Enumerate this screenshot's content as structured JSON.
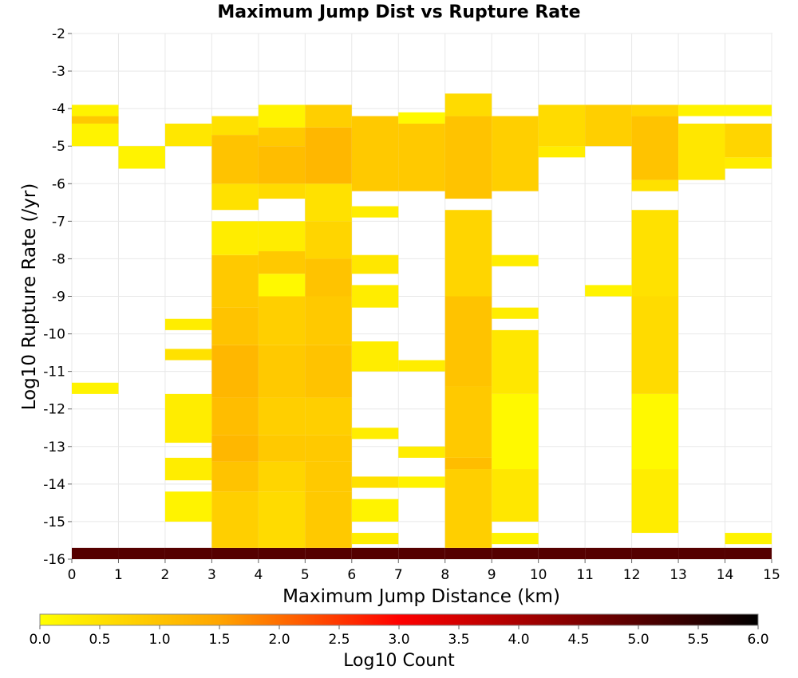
{
  "chart_data": {
    "type": "heatmap",
    "title": "Maximum Jump Dist vs Rupture Rate",
    "xlabel": "Maximum Jump Distance (km)",
    "ylabel": "Log10 Rupture Rate (/yr)",
    "xlim": [
      0,
      15
    ],
    "ylim": [
      -16,
      -2
    ],
    "x_ticks": [
      "0",
      "1",
      "2",
      "3",
      "4",
      "5",
      "6",
      "7",
      "8",
      "9",
      "10",
      "11",
      "12",
      "13",
      "14",
      "15"
    ],
    "y_ticks": [
      "-2",
      "-3",
      "-4",
      "-5",
      "-6",
      "-7",
      "-8",
      "-9",
      "-10",
      "-11",
      "-12",
      "-13",
      "-14",
      "-15",
      "-16"
    ],
    "x_bin_width": 1,
    "y_bin_height": 0.3,
    "grid": true,
    "colorbar": {
      "label": "Log10 Count",
      "range": [
        0,
        6
      ],
      "ticks": [
        "0.0",
        "0.5",
        "1.0",
        "1.5",
        "2.0",
        "2.5",
        "3.0",
        "3.5",
        "4.0",
        "4.5",
        "5.0",
        "5.5",
        "6.0"
      ],
      "palette": [
        "#ffff00",
        "#ffa500",
        "#ff0000",
        "#000000"
      ]
    },
    "columns": [
      {
        "x": 0,
        "cells": [
          {
            "y_from": -16.0,
            "y_to": -15.7,
            "v": 5.0
          },
          {
            "y_from": -11.6,
            "y_to": -11.3,
            "v": 0.2
          },
          {
            "y_from": -5.0,
            "y_to": -4.4,
            "v": 0.2
          },
          {
            "y_from": -4.4,
            "y_to": -4.2,
            "v": 0.9
          },
          {
            "y_from": -4.2,
            "y_to": -3.9,
            "v": 0.2
          }
        ]
      },
      {
        "x": 1,
        "cells": [
          {
            "y_from": -16.0,
            "y_to": -15.7,
            "v": 5.0
          },
          {
            "y_from": -5.6,
            "y_to": -5.0,
            "v": 0.2
          }
        ]
      },
      {
        "x": 2,
        "cells": [
          {
            "y_from": -16.0,
            "y_to": -15.7,
            "v": 5.0
          },
          {
            "y_from": -15.0,
            "y_to": -14.2,
            "v": 0.2
          },
          {
            "y_from": -13.9,
            "y_to": -13.3,
            "v": 0.3
          },
          {
            "y_from": -12.9,
            "y_to": -11.6,
            "v": 0.3
          },
          {
            "y_from": -10.7,
            "y_to": -10.4,
            "v": 0.5
          },
          {
            "y_from": -9.9,
            "y_to": -9.6,
            "v": 0.3
          },
          {
            "y_from": -5.0,
            "y_to": -4.4,
            "v": 0.4
          }
        ]
      },
      {
        "x": 3,
        "cells": [
          {
            "y_from": -16.0,
            "y_to": -15.7,
            "v": 5.0
          },
          {
            "y_from": -15.7,
            "y_to": -14.2,
            "v": 0.8
          },
          {
            "y_from": -14.2,
            "y_to": -13.4,
            "v": 1.0
          },
          {
            "y_from": -13.4,
            "y_to": -12.7,
            "v": 1.2
          },
          {
            "y_from": -12.7,
            "y_to": -11.7,
            "v": 1.1
          },
          {
            "y_from": -11.7,
            "y_to": -10.3,
            "v": 1.2
          },
          {
            "y_from": -10.3,
            "y_to": -9.3,
            "v": 1.0
          },
          {
            "y_from": -9.3,
            "y_to": -7.9,
            "v": 0.9
          },
          {
            "y_from": -7.9,
            "y_to": -7.0,
            "v": 0.3
          },
          {
            "y_from": -6.7,
            "y_to": -6.0,
            "v": 0.5
          },
          {
            "y_from": -6.0,
            "y_to": -4.7,
            "v": 1.0
          },
          {
            "y_from": -4.7,
            "y_to": -4.2,
            "v": 0.5
          }
        ]
      },
      {
        "x": 4,
        "cells": [
          {
            "y_from": -16.0,
            "y_to": -15.7,
            "v": 5.0
          },
          {
            "y_from": -15.7,
            "y_to": -14.2,
            "v": 0.6
          },
          {
            "y_from": -14.2,
            "y_to": -13.4,
            "v": 0.7
          },
          {
            "y_from": -13.4,
            "y_to": -12.7,
            "v": 0.9
          },
          {
            "y_from": -12.7,
            "y_to": -11.7,
            "v": 0.8
          },
          {
            "y_from": -11.7,
            "y_to": -10.3,
            "v": 0.9
          },
          {
            "y_from": -10.3,
            "y_to": -9.0,
            "v": 0.8
          },
          {
            "y_from": -9.0,
            "y_to": -8.4,
            "v": 0.1
          },
          {
            "y_from": -8.4,
            "y_to": -7.8,
            "v": 0.9
          },
          {
            "y_from": -7.8,
            "y_to": -7.0,
            "v": 0.3
          },
          {
            "y_from": -6.4,
            "y_to": -6.0,
            "v": 0.6
          },
          {
            "y_from": -6.0,
            "y_to": -5.0,
            "v": 1.1
          },
          {
            "y_from": -5.0,
            "y_to": -4.5,
            "v": 0.9
          },
          {
            "y_from": -4.5,
            "y_to": -3.9,
            "v": 0.2
          }
        ]
      },
      {
        "x": 5,
        "cells": [
          {
            "y_from": -16.0,
            "y_to": -15.7,
            "v": 5.0
          },
          {
            "y_from": -15.7,
            "y_to": -14.2,
            "v": 0.9
          },
          {
            "y_from": -14.2,
            "y_to": -13.4,
            "v": 0.9
          },
          {
            "y_from": -13.4,
            "y_to": -12.7,
            "v": 0.9
          },
          {
            "y_from": -12.7,
            "y_to": -11.7,
            "v": 0.8
          },
          {
            "y_from": -11.7,
            "y_to": -10.3,
            "v": 1.0
          },
          {
            "y_from": -10.3,
            "y_to": -9.0,
            "v": 0.9
          },
          {
            "y_from": -9.0,
            "y_to": -8.0,
            "v": 1.0
          },
          {
            "y_from": -8.0,
            "y_to": -7.0,
            "v": 0.7
          },
          {
            "y_from": -7.0,
            "y_to": -6.0,
            "v": 0.5
          },
          {
            "y_from": -6.0,
            "y_to": -4.5,
            "v": 1.2
          },
          {
            "y_from": -4.5,
            "y_to": -3.9,
            "v": 0.8
          }
        ]
      },
      {
        "x": 6,
        "cells": [
          {
            "y_from": -16.0,
            "y_to": -15.7,
            "v": 5.0
          },
          {
            "y_from": -15.6,
            "y_to": -15.3,
            "v": 0.3
          },
          {
            "y_from": -15.0,
            "y_to": -14.4,
            "v": 0.2
          },
          {
            "y_from": -14.1,
            "y_to": -13.8,
            "v": 0.5
          },
          {
            "y_from": -12.8,
            "y_to": -12.5,
            "v": 0.3
          },
          {
            "y_from": -11.0,
            "y_to": -10.2,
            "v": 0.3
          },
          {
            "y_from": -9.3,
            "y_to": -8.7,
            "v": 0.3
          },
          {
            "y_from": -8.4,
            "y_to": -7.9,
            "v": 0.4
          },
          {
            "y_from": -6.9,
            "y_to": -6.6,
            "v": 0.3
          },
          {
            "y_from": -6.2,
            "y_to": -4.2,
            "v": 0.9
          }
        ]
      },
      {
        "x": 7,
        "cells": [
          {
            "y_from": -16.0,
            "y_to": -15.7,
            "v": 5.0
          },
          {
            "y_from": -14.1,
            "y_to": -13.8,
            "v": 0.2
          },
          {
            "y_from": -13.3,
            "y_to": -13.0,
            "v": 0.3
          },
          {
            "y_from": -11.0,
            "y_to": -10.7,
            "v": 0.3
          },
          {
            "y_from": -6.2,
            "y_to": -4.4,
            "v": 0.9
          },
          {
            "y_from": -4.4,
            "y_to": -4.1,
            "v": 0.1
          }
        ]
      },
      {
        "x": 8,
        "cells": [
          {
            "y_from": -16.0,
            "y_to": -15.7,
            "v": 5.0
          },
          {
            "y_from": -15.7,
            "y_to": -13.6,
            "v": 0.8
          },
          {
            "y_from": -13.6,
            "y_to": -13.3,
            "v": 1.1
          },
          {
            "y_from": -13.3,
            "y_to": -11.4,
            "v": 0.9
          },
          {
            "y_from": -11.4,
            "y_to": -9.0,
            "v": 1.0
          },
          {
            "y_from": -9.0,
            "y_to": -6.7,
            "v": 0.7
          },
          {
            "y_from": -6.4,
            "y_to": -4.2,
            "v": 1.0
          },
          {
            "y_from": -4.2,
            "y_to": -3.6,
            "v": 0.6
          }
        ]
      },
      {
        "x": 9,
        "cells": [
          {
            "y_from": -16.0,
            "y_to": -15.7,
            "v": 5.0
          },
          {
            "y_from": -15.6,
            "y_to": -15.3,
            "v": 0.2
          },
          {
            "y_from": -15.0,
            "y_to": -13.6,
            "v": 0.4
          },
          {
            "y_from": -13.6,
            "y_to": -11.6,
            "v": 0.1
          },
          {
            "y_from": -11.6,
            "y_to": -9.9,
            "v": 0.4
          },
          {
            "y_from": -9.6,
            "y_to": -9.3,
            "v": 0.3
          },
          {
            "y_from": -8.2,
            "y_to": -7.9,
            "v": 0.3
          },
          {
            "y_from": -6.2,
            "y_to": -4.2,
            "v": 0.8
          }
        ]
      },
      {
        "x": 10,
        "cells": [
          {
            "y_from": -16.0,
            "y_to": -15.7,
            "v": 5.0
          },
          {
            "y_from": -5.3,
            "y_to": -5.0,
            "v": 0.3
          },
          {
            "y_from": -5.0,
            "y_to": -3.9,
            "v": 0.6
          }
        ]
      },
      {
        "x": 11,
        "cells": [
          {
            "y_from": -16.0,
            "y_to": -15.7,
            "v": 5.0
          },
          {
            "y_from": -9.0,
            "y_to": -8.7,
            "v": 0.2
          },
          {
            "y_from": -5.0,
            "y_to": -3.9,
            "v": 0.8
          }
        ]
      },
      {
        "x": 12,
        "cells": [
          {
            "y_from": -16.0,
            "y_to": -15.7,
            "v": 5.0
          },
          {
            "y_from": -15.3,
            "y_to": -13.6,
            "v": 0.3
          },
          {
            "y_from": -13.6,
            "y_to": -11.6,
            "v": 0.1
          },
          {
            "y_from": -11.6,
            "y_to": -9.0,
            "v": 0.6
          },
          {
            "y_from": -9.0,
            "y_to": -6.7,
            "v": 0.5
          },
          {
            "y_from": -6.2,
            "y_to": -5.9,
            "v": 0.5
          },
          {
            "y_from": -5.9,
            "y_to": -4.2,
            "v": 1.0
          },
          {
            "y_from": -4.2,
            "y_to": -3.9,
            "v": 0.7
          }
        ]
      },
      {
        "x": 13,
        "cells": [
          {
            "y_from": -16.0,
            "y_to": -15.7,
            "v": 5.0
          },
          {
            "y_from": -5.9,
            "y_to": -4.4,
            "v": 0.4
          },
          {
            "y_from": -4.2,
            "y_to": -3.9,
            "v": 0.2
          }
        ]
      },
      {
        "x": 14,
        "cells": [
          {
            "y_from": -16.0,
            "y_to": -15.7,
            "v": 5.0
          },
          {
            "y_from": -15.6,
            "y_to": -15.3,
            "v": 0.2
          },
          {
            "y_from": -5.6,
            "y_to": -5.3,
            "v": 0.3
          },
          {
            "y_from": -5.3,
            "y_to": -4.4,
            "v": 0.7
          },
          {
            "y_from": -4.2,
            "y_to": -3.9,
            "v": 0.2
          }
        ]
      }
    ]
  }
}
